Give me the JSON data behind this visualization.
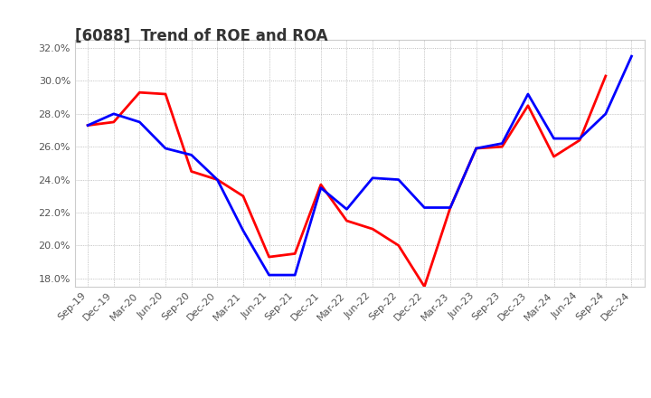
{
  "title": "[6088]  Trend of ROE and ROA",
  "x_labels": [
    "Sep-19",
    "Dec-19",
    "Mar-20",
    "Jun-20",
    "Sep-20",
    "Dec-20",
    "Mar-21",
    "Jun-21",
    "Sep-21",
    "Dec-21",
    "Mar-22",
    "Jun-22",
    "Sep-22",
    "Dec-22",
    "Mar-23",
    "Jun-23",
    "Sep-23",
    "Dec-23",
    "Mar-24",
    "Jun-24",
    "Sep-24",
    "Dec-24"
  ],
  "ROE": [
    27.3,
    27.5,
    29.3,
    29.2,
    24.5,
    24.0,
    23.0,
    19.3,
    19.5,
    23.7,
    21.5,
    21.0,
    20.0,
    17.5,
    22.3,
    25.9,
    26.0,
    28.5,
    25.4,
    26.4,
    30.3,
    null
  ],
  "ROA": [
    27.3,
    28.0,
    27.5,
    25.9,
    25.5,
    24.0,
    20.9,
    18.2,
    18.2,
    23.5,
    22.2,
    24.1,
    24.0,
    22.3,
    22.3,
    25.9,
    26.2,
    29.2,
    26.5,
    26.5,
    28.0,
    31.5
  ],
  "roe_color": "#ff0000",
  "roa_color": "#0000ff",
  "ylim": [
    17.5,
    32.5
  ],
  "yticks": [
    18.0,
    20.0,
    22.0,
    24.0,
    26.0,
    28.0,
    30.0,
    32.0
  ],
  "ytick_labels": [
    "18.0%",
    "20.0%",
    "22.0%",
    "24.0%",
    "26.0%",
    "28.0%",
    "30.0%",
    "32.0%"
  ],
  "bg_color": "#ffffff",
  "grid_color": "#aaaaaa",
  "title_fontsize": 12,
  "tick_fontsize": 8,
  "legend_fontsize": 10,
  "line_width": 2.0
}
